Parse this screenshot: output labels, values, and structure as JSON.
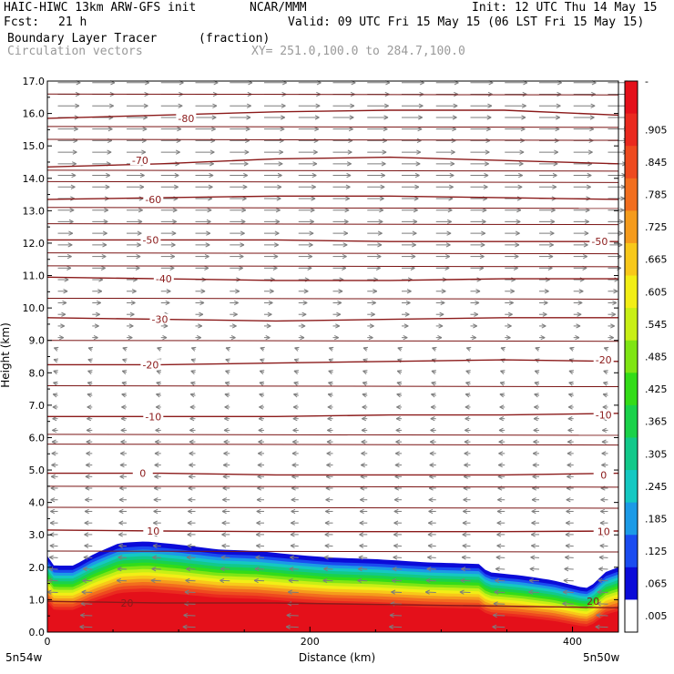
{
  "header": {
    "model": "HAIC-HIWC 13km ARW-GFS init",
    "org": "NCAR/MMM",
    "init": "Init: 12 UTC Thu 14 May 15",
    "fcst_label": "Fcst:",
    "fcst_value": "21 h",
    "valid": "Valid: 09 UTC Fri 15 May 15 (06 LST Fri 15 May 15)",
    "field": "Boundary Layer Tracer",
    "field_units": "(fraction)",
    "vectors": "Circulation vectors",
    "xsec": "XY= 251.0,100.0 to 284.7,100.0"
  },
  "chart_data": {
    "type": "heatmap",
    "xlabel": "Distance (km)",
    "ylabel": "Height (km)",
    "xlim": [
      0,
      435
    ],
    "ylim": [
      0,
      17
    ],
    "x_ticks": [
      0,
      200,
      400
    ],
    "y_ticks": [
      "0.0",
      "1.0",
      "2.0",
      "3.0",
      "4.0",
      "5.0",
      "6.0",
      "7.0",
      "8.0",
      "9.0",
      "10.0",
      "11.0",
      "12.0",
      "13.0",
      "14.0",
      "15.0",
      "16.0",
      "17.0"
    ],
    "left_endpoint": "5n54w",
    "right_endpoint": "5n50w",
    "colorbar_labels": [
      "-",
      ".905",
      ".845",
      ".785",
      ".725",
      ".665",
      ".605",
      ".545",
      ".485",
      ".425",
      ".365",
      ".305",
      ".245",
      ".185",
      ".125",
      ".065",
      ".005"
    ],
    "colorbar_colors": [
      "#ffffff",
      "#0b0bd8",
      "#1a4cf0",
      "#1c9ae6",
      "#15c8c2",
      "#12c98a",
      "#1ad24a",
      "#33dc18",
      "#7fe514",
      "#c8ef16",
      "#f2ee16",
      "#f8c81a",
      "#f59b1c",
      "#f26e1e",
      "#ee4a1f",
      "#ea2a1f",
      "#e4101a",
      "#ffffff"
    ],
    "surface_km": [
      [
        0,
        2.35
      ],
      [
        5,
        2.05
      ],
      [
        20,
        2.05
      ],
      [
        35,
        2.4
      ],
      [
        55,
        2.75
      ],
      [
        75,
        2.8
      ],
      [
        100,
        2.7
      ],
      [
        130,
        2.55
      ],
      [
        160,
        2.5
      ],
      [
        185,
        2.4
      ],
      [
        215,
        2.3
      ],
      [
        250,
        2.25
      ],
      [
        290,
        2.15
      ],
      [
        330,
        2.1
      ],
      [
        335,
        1.85
      ],
      [
        360,
        1.75
      ],
      [
        385,
        1.6
      ],
      [
        410,
        1.35
      ],
      [
        415,
        1.45
      ],
      [
        425,
        1.85
      ],
      [
        435,
        2.0
      ]
    ],
    "temperature_labels_c": [
      "-80",
      "-70",
      "-60",
      "-50",
      "-50",
      "-40",
      "-30",
      "-20",
      "-20",
      "-10",
      "-10",
      "0",
      "0",
      "10",
      "10",
      "20",
      "20"
    ],
    "temperature_contours": [
      {
        "label": "-80",
        "y": [
          15.85,
          15.95,
          16.05,
          16.1,
          16.1,
          15.95
        ]
      },
      {
        "label": "-70",
        "y": [
          14.35,
          14.45,
          14.6,
          14.65,
          14.55,
          14.45
        ]
      },
      {
        "label": "-60",
        "y": [
          13.35,
          13.4,
          13.45,
          13.45,
          13.4,
          13.35
        ]
      },
      {
        "label": "-50",
        "y": [
          12.1,
          12.1,
          12.1,
          12.05,
          12.05,
          12.05
        ]
      },
      {
        "label": "-40",
        "y": [
          10.95,
          10.9,
          10.85,
          10.85,
          10.9,
          10.9
        ]
      },
      {
        "label": "-30",
        "y": [
          9.7,
          9.65,
          9.6,
          9.65,
          9.7,
          9.7
        ]
      },
      {
        "label": "-20",
        "y": [
          8.25,
          8.25,
          8.3,
          8.35,
          8.4,
          8.35
        ]
      },
      {
        "label": "-10",
        "y": [
          6.65,
          6.65,
          6.65,
          6.7,
          6.7,
          6.75
        ]
      },
      {
        "label": "0",
        "y": [
          4.9,
          4.9,
          4.85,
          4.85,
          4.85,
          4.9
        ]
      },
      {
        "label": "10",
        "y": [
          3.15,
          3.12,
          3.1,
          3.1,
          3.1,
          3.12
        ]
      },
      {
        "label": "20",
        "y": [
          0.95,
          0.9,
          0.9,
          0.85,
          0.8,
          0.75
        ]
      }
    ],
    "theta_lines_km": [
      16.6,
      15.6,
      15.2,
      14.25,
      13.9,
      13.1,
      12.6,
      11.7,
      11.3,
      10.3,
      9.0,
      7.6,
      6.1,
      5.8,
      4.5,
      3.85,
      2.5
    ],
    "bl_tracer_layers": [
      {
        "value": "0.005",
        "color": "#0b0bd8",
        "top_offset_km": 0.0
      },
      {
        "value": "0.065",
        "color": "#1a4cf0",
        "top_offset_km": 0.15
      },
      {
        "value": "0.125",
        "color": "#1c9ae6",
        "top_offset_km": 0.25
      },
      {
        "value": "0.185",
        "color": "#15c8c2",
        "top_offset_km": 0.35
      },
      {
        "value": "0.245",
        "color": "#12c98a",
        "top_offset_km": 0.45
      },
      {
        "value": "0.305",
        "color": "#1ad24a",
        "top_offset_km": 0.55
      },
      {
        "value": "0.365",
        "color": "#33dc18",
        "top_offset_km": 0.65
      },
      {
        "value": "0.425",
        "color": "#7fe514",
        "top_offset_km": 0.75
      },
      {
        "value": "0.485",
        "color": "#c8ef16",
        "top_offset_km": 0.85
      },
      {
        "value": "0.545",
        "color": "#f2ee16",
        "top_offset_km": 0.95
      },
      {
        "value": "0.605",
        "color": "#f8c81a",
        "top_offset_km": 1.05
      },
      {
        "value": "0.665",
        "color": "#f59b1c",
        "top_offset_km": 1.15
      },
      {
        "value": "0.725",
        "color": "#f26e1e",
        "top_offset_km": 1.25
      },
      {
        "value": "0.785",
        "color": "#ee4a1f",
        "top_offset_km": 1.35
      },
      {
        "value": "0.845",
        "color": "#ea2a1f",
        "top_offset_km": 1.45
      },
      {
        "value": "0.905",
        "color": "#e4101a",
        "top_offset_km": 1.55
      }
    ]
  }
}
